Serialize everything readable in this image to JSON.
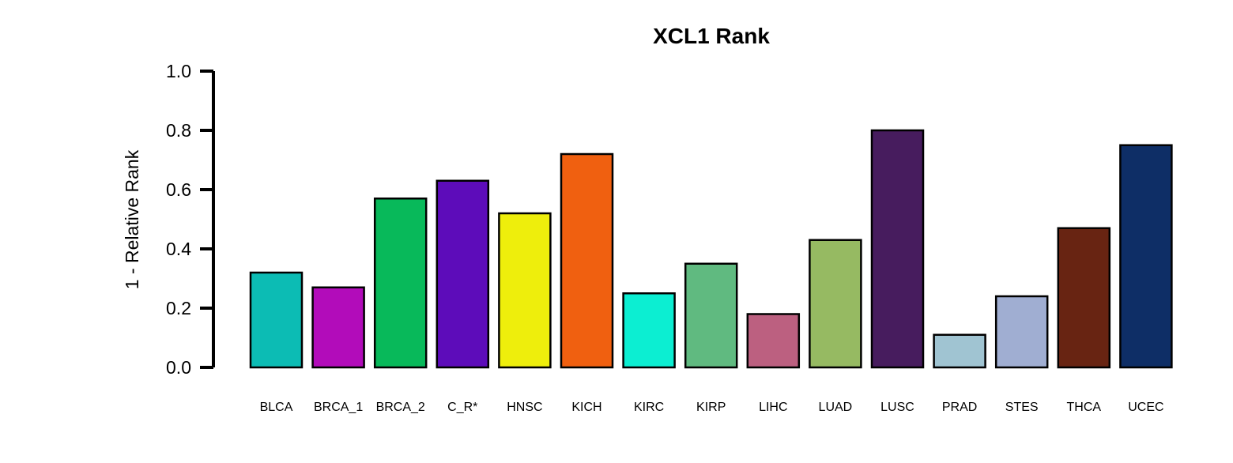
{
  "chart_data": {
    "type": "bar",
    "title": "XCL1 Rank",
    "xlabel": "",
    "ylabel": "1 - Relative Rank",
    "ylim": [
      0,
      1
    ],
    "yticks": [
      "0.0",
      "0.2",
      "0.4",
      "0.6",
      "0.8",
      "1.0"
    ],
    "categories": [
      "BLCA",
      "BRCA_1",
      "BRCA_2",
      "C_R*",
      "HNSC",
      "KICH",
      "KIRC",
      "KIRP",
      "LIHC",
      "LUAD",
      "LUSC",
      "PRAD",
      "STES",
      "THCA",
      "UCEC"
    ],
    "values": [
      0.32,
      0.27,
      0.57,
      0.63,
      0.52,
      0.72,
      0.25,
      0.35,
      0.18,
      0.43,
      0.8,
      0.11,
      0.24,
      0.47,
      0.75
    ],
    "colors": [
      "#0CBCB4",
      "#B20CBA",
      "#08B95A",
      "#5D0CBA",
      "#EEEE0C",
      "#F06010",
      "#0CEED2",
      "#60BA80",
      "#BC6080",
      "#96BA62",
      "#471C5E",
      "#A0C4D2",
      "#A0AED2",
      "#682412",
      "#0E2E66"
    ],
    "grid": false,
    "legend": "none"
  }
}
